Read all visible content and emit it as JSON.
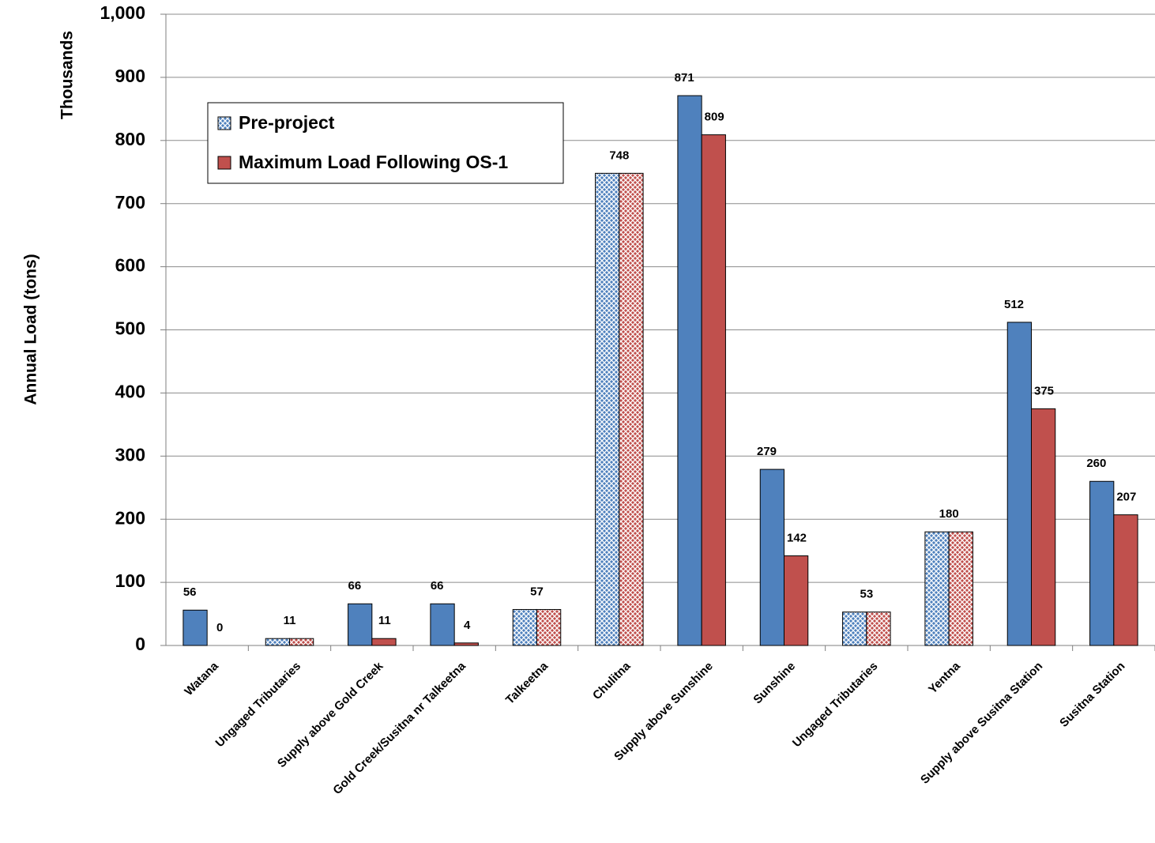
{
  "chart_data": {
    "type": "bar",
    "y_label": "Annual Load (tons)",
    "y_unit_label": "Thousands",
    "categories": [
      "Watana",
      "Ungaged Tributaries",
      "Supply above Gold Creek",
      "Gold Creek/Susitna nr Talkeetna",
      "Talkeetna",
      "Chulitna",
      "Supply above Sunshine",
      "Sunshine",
      "Ungaged Tributaries",
      "Yentna",
      "Supply above Susitna Station",
      "Susitna Station"
    ],
    "hatched": [
      false,
      true,
      false,
      false,
      true,
      true,
      false,
      false,
      true,
      true,
      false,
      false
    ],
    "series": [
      {
        "name": "Pre-project",
        "color": "#4f81bd",
        "legend_hatched": true,
        "values": [
          56,
          11,
          66,
          66,
          57,
          748,
          871,
          279,
          53,
          180,
          512,
          260
        ]
      },
      {
        "name": "Maximum Load Following OS-1",
        "color": "#c0504d",
        "legend_hatched": false,
        "values": [
          0,
          11,
          11,
          4,
          57,
          748,
          809,
          142,
          53,
          180,
          375,
          207
        ]
      }
    ],
    "ylim": [
      0,
      1000
    ],
    "yticks": [
      0,
      100,
      200,
      300,
      400,
      500,
      600,
      700,
      800,
      900,
      {
        "value": 1000,
        "label": "1,000"
      }
    ],
    "grid": true
  }
}
